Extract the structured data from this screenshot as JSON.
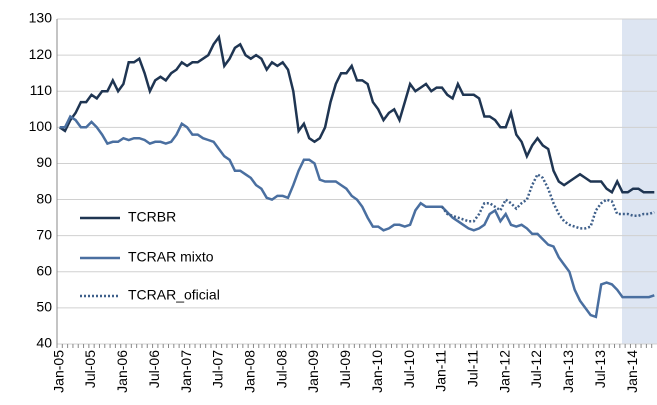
{
  "chart_data": {
    "type": "line",
    "categories": [
      "Jan-05",
      null,
      null,
      null,
      null,
      null,
      "Jul-05",
      null,
      null,
      null,
      null,
      null,
      "Jan-06",
      null,
      null,
      null,
      null,
      null,
      "Jul-06",
      null,
      null,
      null,
      null,
      null,
      "Jan-07",
      null,
      null,
      null,
      null,
      null,
      "Jul-07",
      null,
      null,
      null,
      null,
      null,
      "Jan-08",
      null,
      null,
      null,
      null,
      null,
      "Jul-08",
      null,
      null,
      null,
      null,
      null,
      "Jan-09",
      null,
      null,
      null,
      null,
      null,
      "Jul-09",
      null,
      null,
      null,
      null,
      null,
      "Jan-10",
      null,
      null,
      null,
      null,
      null,
      "Jul-10",
      null,
      null,
      null,
      null,
      null,
      "Jan-11",
      null,
      null,
      null,
      null,
      null,
      "Jul-11",
      null,
      null,
      null,
      null,
      null,
      "Jan-12",
      null,
      null,
      null,
      null,
      null,
      "Jul-12",
      null,
      null,
      null,
      null,
      null,
      "Jan-13",
      null,
      null,
      null,
      null,
      null,
      "Jul-13",
      null,
      null,
      null,
      null,
      null,
      "Jan-14",
      null,
      null,
      null,
      null
    ],
    "series": [
      {
        "name": "TCRBR",
        "color": "#1f3552",
        "line_style": "solid",
        "values": [
          100,
          99,
          102,
          104,
          107,
          107,
          109,
          108,
          110,
          110,
          113,
          110,
          112,
          118,
          118,
          119,
          115,
          110,
          113,
          114,
          113,
          115,
          116,
          118,
          117,
          118,
          118,
          119,
          120,
          123,
          125,
          117,
          119,
          122,
          123,
          120,
          119,
          120,
          119,
          116,
          118,
          117,
          118,
          116,
          110,
          99,
          101,
          97,
          96,
          97,
          100,
          107,
          112,
          115,
          115,
          117,
          113,
          113,
          112,
          107,
          105,
          102,
          104,
          105,
          102,
          107,
          112,
          110,
          111,
          112,
          110,
          111,
          111,
          109,
          108,
          112,
          109,
          109,
          109,
          108,
          103,
          103,
          102,
          100,
          100,
          104,
          98,
          96,
          92,
          95,
          97,
          95,
          94,
          88,
          85,
          84,
          85,
          86,
          87,
          86,
          85,
          85,
          85,
          83,
          82,
          85,
          82,
          82,
          83,
          83,
          82,
          82,
          82
        ]
      },
      {
        "name": "TCRAR mixto",
        "color": "#4a6fa0",
        "line_style": "solid",
        "values": [
          100,
          100,
          103,
          102,
          100,
          100,
          101.5,
          100,
          98,
          95.5,
          96,
          96,
          97,
          96.5,
          97,
          97,
          96.5,
          95.5,
          96,
          96,
          95.5,
          96,
          98,
          101,
          100,
          98,
          98,
          97,
          96.5,
          96,
          94,
          92,
          91,
          88,
          88,
          87,
          86,
          84,
          83,
          80.5,
          80,
          81,
          81,
          80.5,
          84,
          88,
          91,
          91,
          90,
          85.5,
          85,
          85,
          85,
          84,
          83,
          81,
          80,
          78,
          75,
          72.5,
          72.5,
          71.5,
          72,
          73,
          73,
          72.5,
          73,
          77,
          79,
          78,
          78,
          78,
          78,
          76.5,
          75,
          74,
          73,
          72,
          71.5,
          72,
          73,
          76,
          77,
          74,
          76,
          73,
          72.5,
          73,
          72,
          70.5,
          70.5,
          69,
          67.5,
          67,
          64,
          62,
          60,
          55,
          52,
          50,
          48,
          47.5,
          56.5,
          57,
          56.5,
          55,
          53,
          53,
          53,
          53,
          53,
          53,
          53.5
        ]
      },
      {
        "name": "TCRAR_oficial",
        "color": "#3e5f8a",
        "line_style": "dotted",
        "values": [
          null,
          null,
          null,
          null,
          null,
          null,
          null,
          null,
          null,
          null,
          null,
          null,
          null,
          null,
          null,
          null,
          null,
          null,
          null,
          null,
          null,
          null,
          null,
          null,
          null,
          null,
          null,
          null,
          null,
          null,
          null,
          null,
          null,
          null,
          null,
          null,
          null,
          null,
          null,
          null,
          null,
          null,
          null,
          null,
          null,
          null,
          null,
          null,
          null,
          null,
          null,
          null,
          null,
          null,
          null,
          null,
          null,
          null,
          null,
          null,
          null,
          null,
          null,
          null,
          null,
          null,
          null,
          null,
          null,
          null,
          null,
          null,
          78,
          76,
          75.5,
          75,
          74.5,
          74,
          74,
          76,
          79,
          79,
          78,
          77,
          80,
          79,
          77.5,
          79,
          80,
          84,
          87,
          86,
          83,
          79,
          76,
          74,
          73,
          72.5,
          72,
          72,
          72.5,
          77,
          79,
          80,
          79.5,
          76,
          76,
          76,
          75.5,
          75.5,
          76,
          76,
          76.5
        ]
      }
    ],
    "ylim": [
      40,
      130
    ],
    "yticks": [
      40,
      50,
      60,
      70,
      80,
      90,
      100,
      110,
      120,
      130
    ],
    "grid": true,
    "legend": "left"
  }
}
